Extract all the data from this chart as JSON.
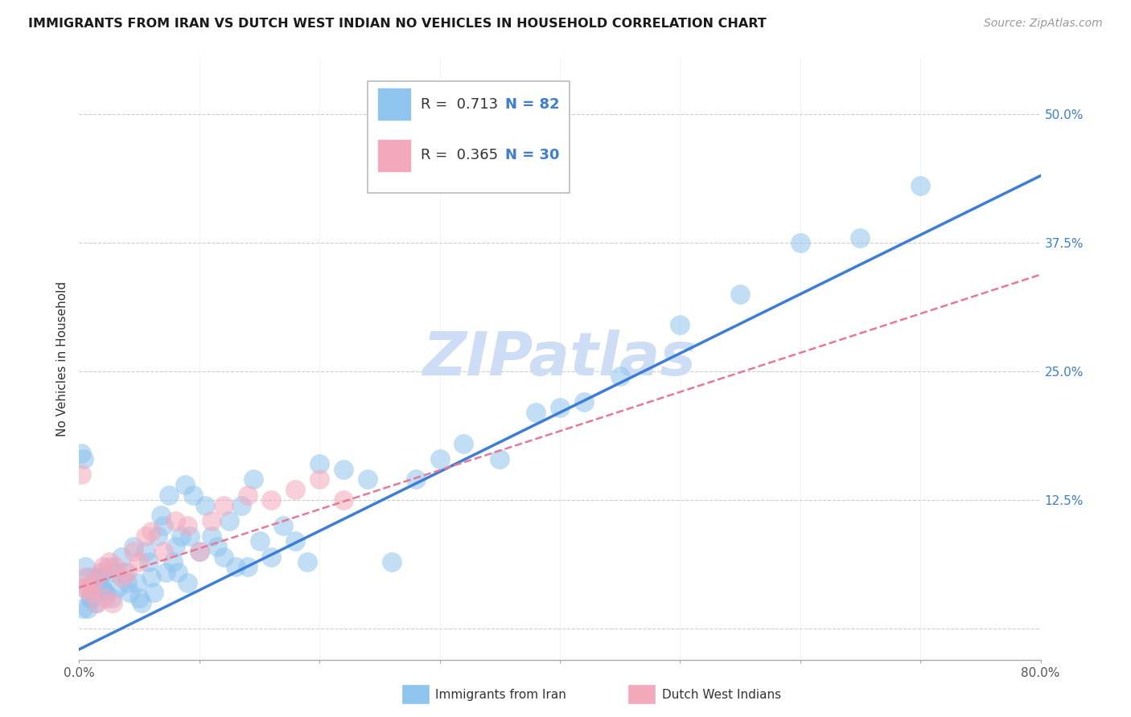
{
  "title": "IMMIGRANTS FROM IRAN VS DUTCH WEST INDIAN NO VEHICLES IN HOUSEHOLD CORRELATION CHART",
  "source": "Source: ZipAtlas.com",
  "ylabel_label": "No Vehicles in Household",
  "bottom_legend_1": "Immigrants from Iran",
  "bottom_legend_2": "Dutch West Indians",
  "legend_r1": "R =  0.713",
  "legend_n1": "N = 82",
  "legend_r2": "R =  0.365",
  "legend_n2": "N = 30",
  "xlim": [
    0.0,
    0.8
  ],
  "ylim": [
    -0.03,
    0.555
  ],
  "yticks": [
    0.0,
    0.125,
    0.25,
    0.375,
    0.5
  ],
  "ytick_labels": [
    "",
    "12.5%",
    "25.0%",
    "37.5%",
    "50.0%"
  ],
  "blue_color": "#8EC4EE",
  "pink_color": "#F4A8BB",
  "blue_line_color": "#3B7DD8",
  "pink_line_color": "#E87898",
  "grid_color": "#CCCCCC",
  "watermark_color": "#CCDDF5",
  "blue_slope": 0.575,
  "blue_intercept": -0.02,
  "pink_slope": 0.38,
  "pink_intercept": 0.04,
  "blue_scatter_x": [
    0.003,
    0.005,
    0.006,
    0.008,
    0.01,
    0.012,
    0.014,
    0.016,
    0.018,
    0.02,
    0.022,
    0.025,
    0.027,
    0.03,
    0.032,
    0.035,
    0.038,
    0.04,
    0.042,
    0.045,
    0.048,
    0.05,
    0.052,
    0.055,
    0.058,
    0.06,
    0.062,
    0.065,
    0.068,
    0.07,
    0.072,
    0.075,
    0.078,
    0.08,
    0.082,
    0.085,
    0.088,
    0.09,
    0.092,
    0.095,
    0.1,
    0.105,
    0.11,
    0.115,
    0.12,
    0.125,
    0.13,
    0.135,
    0.14,
    0.145,
    0.15,
    0.16,
    0.17,
    0.18,
    0.19,
    0.2,
    0.22,
    0.24,
    0.26,
    0.28,
    0.3,
    0.32,
    0.35,
    0.38,
    0.4,
    0.42,
    0.45,
    0.5,
    0.55,
    0.6,
    0.65,
    0.7,
    0.002,
    0.004,
    0.007,
    0.009,
    0.011,
    0.013,
    0.015,
    0.017,
    0.019,
    0.021
  ],
  "blue_scatter_y": [
    0.02,
    0.06,
    0.04,
    0.05,
    0.03,
    0.035,
    0.025,
    0.05,
    0.04,
    0.055,
    0.035,
    0.06,
    0.03,
    0.055,
    0.04,
    0.07,
    0.055,
    0.045,
    0.035,
    0.08,
    0.045,
    0.03,
    0.025,
    0.075,
    0.065,
    0.05,
    0.035,
    0.09,
    0.11,
    0.1,
    0.055,
    0.13,
    0.065,
    0.08,
    0.055,
    0.09,
    0.14,
    0.045,
    0.09,
    0.13,
    0.075,
    0.12,
    0.09,
    0.08,
    0.07,
    0.105,
    0.06,
    0.12,
    0.06,
    0.145,
    0.085,
    0.07,
    0.1,
    0.085,
    0.065,
    0.16,
    0.155,
    0.145,
    0.065,
    0.145,
    0.165,
    0.18,
    0.165,
    0.21,
    0.215,
    0.22,
    0.245,
    0.295,
    0.325,
    0.375,
    0.38,
    0.43,
    0.17,
    0.165,
    0.02,
    0.03,
    0.04,
    0.045,
    0.05,
    0.05,
    0.04,
    0.035
  ],
  "pink_scatter_x": [
    0.003,
    0.005,
    0.008,
    0.01,
    0.012,
    0.015,
    0.018,
    0.02,
    0.022,
    0.025,
    0.028,
    0.03,
    0.035,
    0.04,
    0.045,
    0.05,
    0.055,
    0.06,
    0.07,
    0.08,
    0.09,
    0.1,
    0.11,
    0.12,
    0.14,
    0.16,
    0.18,
    0.2,
    0.22,
    0.002
  ],
  "pink_scatter_y": [
    0.04,
    0.05,
    0.04,
    0.035,
    0.045,
    0.025,
    0.055,
    0.06,
    0.03,
    0.065,
    0.025,
    0.06,
    0.05,
    0.055,
    0.075,
    0.065,
    0.09,
    0.095,
    0.075,
    0.105,
    0.1,
    0.075,
    0.105,
    0.12,
    0.13,
    0.125,
    0.135,
    0.145,
    0.125,
    0.15
  ]
}
